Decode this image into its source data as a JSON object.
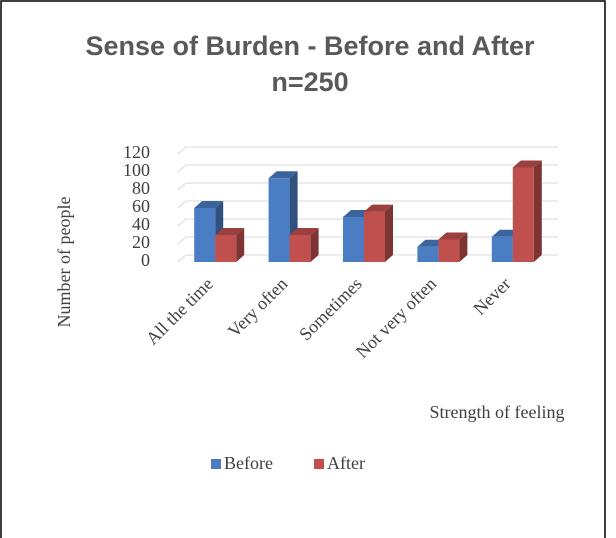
{
  "chart_data": {
    "type": "bar3d",
    "title": "Sense of Burden - Before and After  n=250",
    "x_label": "Strength of feeling",
    "y_label": "Number of people",
    "categories": [
      "All the time",
      "Very often",
      "Sometimes",
      "Not very often",
      "Never"
    ],
    "series": [
      {
        "name": "Before",
        "color": "#4a7dc4",
        "values": [
          60,
          93,
          50,
          17,
          28
        ]
      },
      {
        "name": "After",
        "color": "#c0504d",
        "values": [
          30,
          30,
          56,
          25,
          105
        ]
      }
    ],
    "ylim": [
      0,
      120
    ],
    "yticks": [
      0,
      20,
      40,
      60,
      80,
      100,
      120
    ],
    "grid": true,
    "legend": "bottom"
  }
}
